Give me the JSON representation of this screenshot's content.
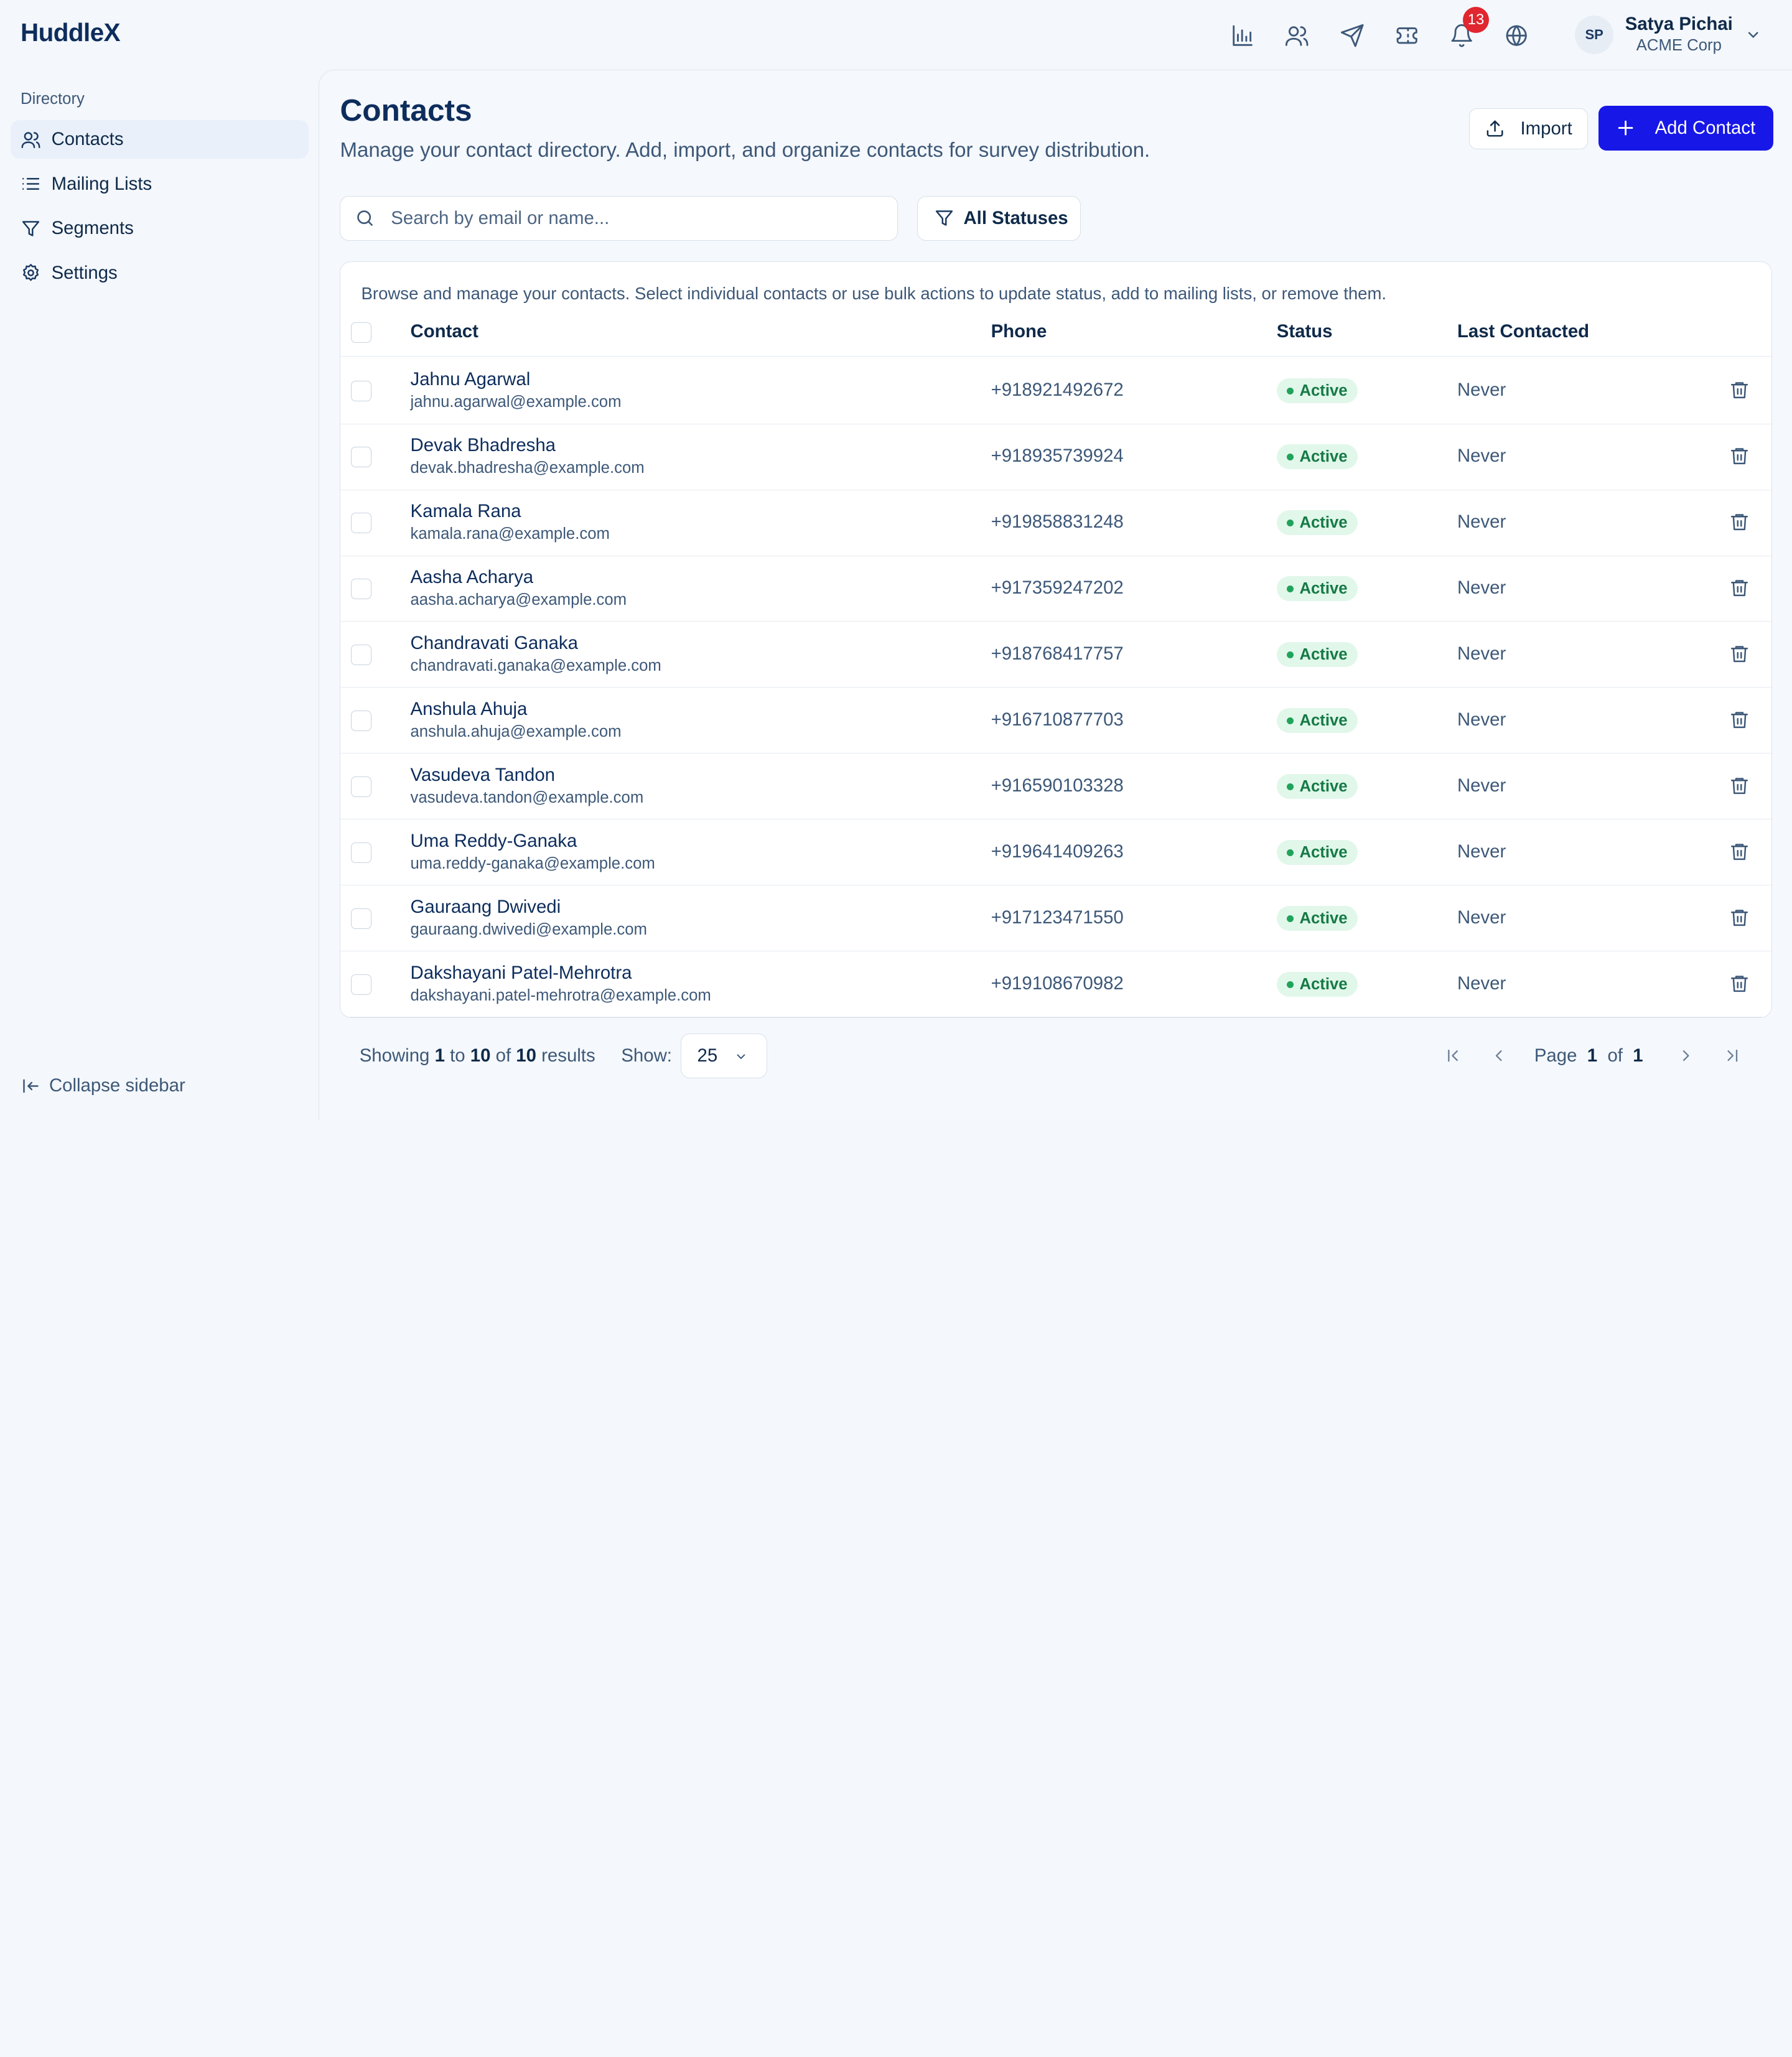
{
  "app": {
    "logo": "HuddleX"
  },
  "header": {
    "notification_count": "13",
    "user": {
      "initials": "SP",
      "name": "Satya Pichai",
      "org": "ACME Corp"
    }
  },
  "sidebar": {
    "section_label": "Directory",
    "items": [
      {
        "label": "Contacts",
        "icon": "users-icon",
        "active": true
      },
      {
        "label": "Mailing Lists",
        "icon": "list-icon",
        "active": false
      },
      {
        "label": "Segments",
        "icon": "filter-icon",
        "active": false
      },
      {
        "label": "Settings",
        "icon": "gear-icon",
        "active": false
      }
    ],
    "collapse_label": "Collapse sidebar"
  },
  "main": {
    "title": "Contacts",
    "subtitle": "Manage your contact directory. Add, import, and organize contacts for survey distribution.",
    "import_label": "Import",
    "add_label": "Add Contact",
    "search_placeholder": "Search by email or name...",
    "status_filter_label": "All Statuses",
    "table_description": "Browse and manage your contacts. Select individual contacts or use bulk actions to update status, add to mailing lists, or remove them.",
    "columns": {
      "contact": "Contact",
      "phone": "Phone",
      "status": "Status",
      "last_contacted": "Last Contacted"
    },
    "rows": [
      {
        "name": "Jahnu Agarwal",
        "email": "jahnu.agarwal@example.com",
        "phone": "+918921492672",
        "status": "Active",
        "last_contacted": "Never"
      },
      {
        "name": "Devak Bhadresha",
        "email": "devak.bhadresha@example.com",
        "phone": "+918935739924",
        "status": "Active",
        "last_contacted": "Never"
      },
      {
        "name": "Kamala Rana",
        "email": "kamala.rana@example.com",
        "phone": "+919858831248",
        "status": "Active",
        "last_contacted": "Never"
      },
      {
        "name": "Aasha Acharya",
        "email": "aasha.acharya@example.com",
        "phone": "+917359247202",
        "status": "Active",
        "last_contacted": "Never"
      },
      {
        "name": "Chandravati Ganaka",
        "email": "chandravati.ganaka@example.com",
        "phone": "+918768417757",
        "status": "Active",
        "last_contacted": "Never"
      },
      {
        "name": "Anshula Ahuja",
        "email": "anshula.ahuja@example.com",
        "phone": "+916710877703",
        "status": "Active",
        "last_contacted": "Never"
      },
      {
        "name": "Vasudeva Tandon",
        "email": "vasudeva.tandon@example.com",
        "phone": "+916590103328",
        "status": "Active",
        "last_contacted": "Never"
      },
      {
        "name": "Uma Reddy-Ganaka",
        "email": "uma.reddy-ganaka@example.com",
        "phone": "+919641409263",
        "status": "Active",
        "last_contacted": "Never"
      },
      {
        "name": "Gauraang Dwivedi",
        "email": "gauraang.dwivedi@example.com",
        "phone": "+917123471550",
        "status": "Active",
        "last_contacted": "Never"
      },
      {
        "name": "Dakshayani Patel-Mehrotra",
        "email": "dakshayani.patel-mehrotra@example.com",
        "phone": "+919108670982",
        "status": "Active",
        "last_contacted": "Never"
      }
    ],
    "footer": {
      "showing_prefix": "Showing",
      "from": "1",
      "to_word": "to",
      "to": "10",
      "of_word": "of",
      "total": "10",
      "results_word": "results",
      "show_label": "Show:",
      "page_size": "25",
      "page_word": "Page",
      "current_page": "1",
      "page_of_word": "of",
      "total_pages": "1"
    }
  },
  "colors": {
    "primary": "#1717e8",
    "active_badge_bg": "#e1f7ea",
    "active_badge_text": "#167a46",
    "notification": "#e0262f"
  }
}
